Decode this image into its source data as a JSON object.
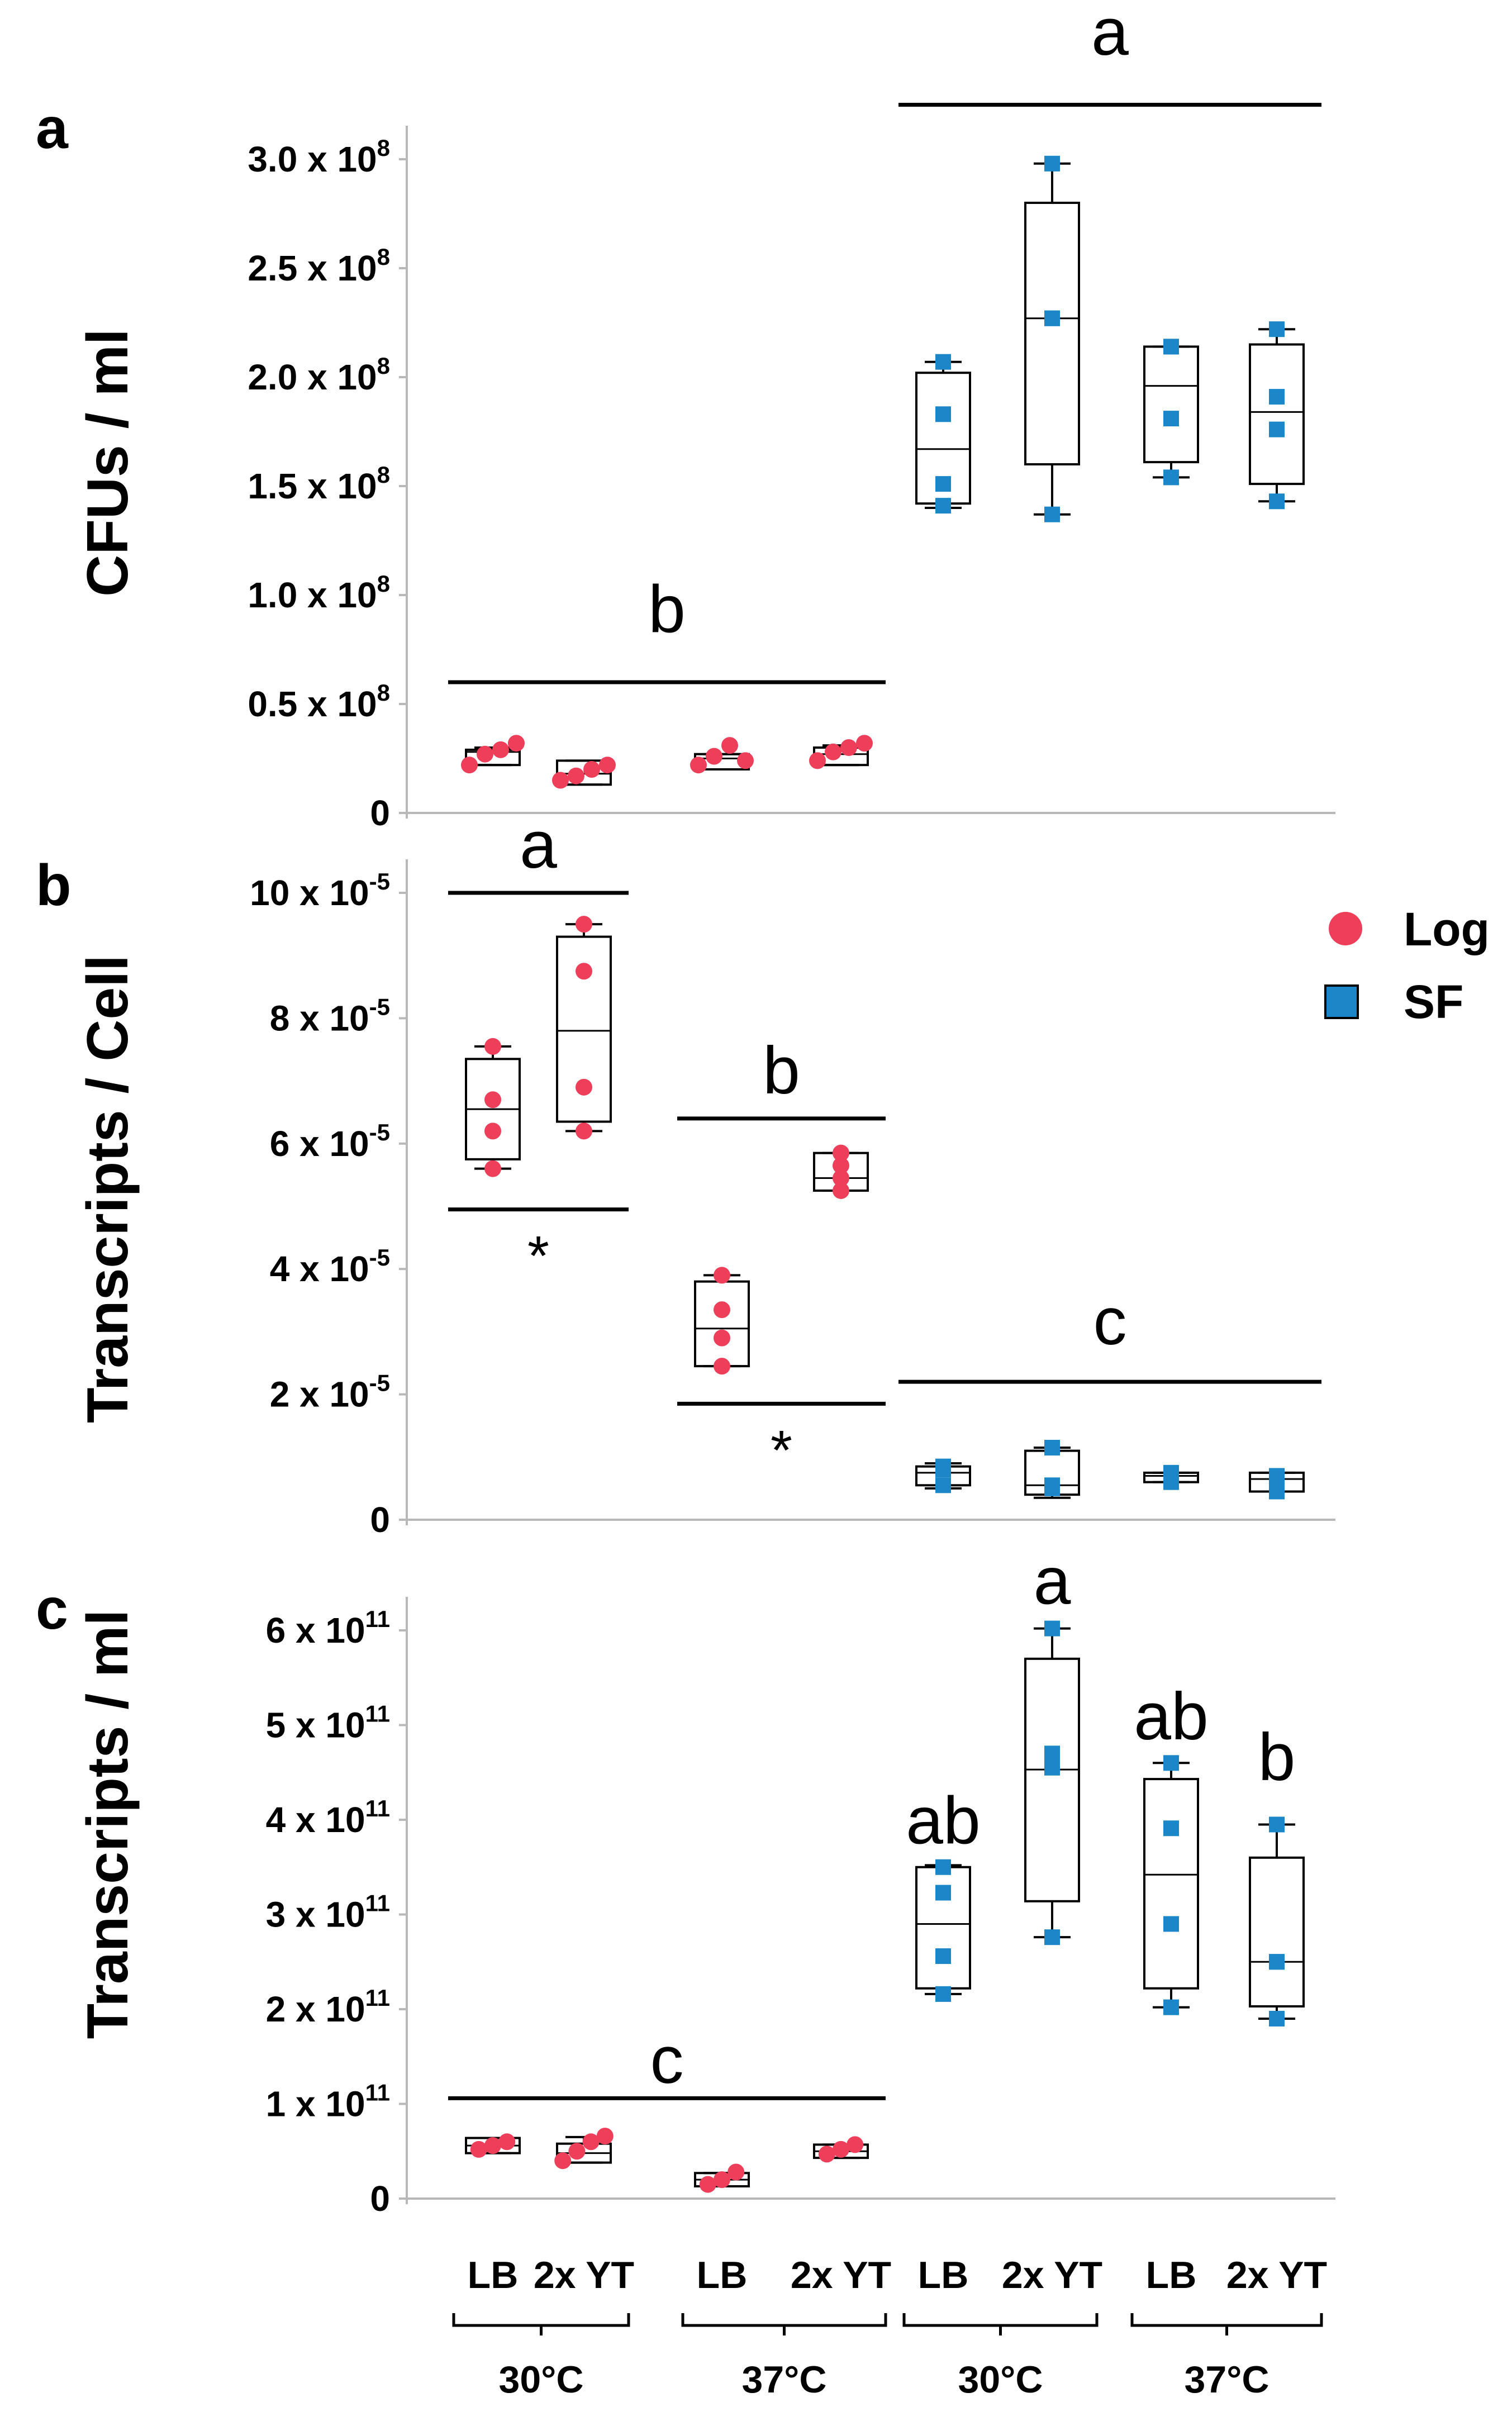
{
  "figure": {
    "categories": [
      "LB",
      "2x YT",
      "LB",
      "2x YT",
      "LB",
      "2x YT",
      "LB",
      "2x YT"
    ],
    "groups": [
      "30°C",
      "37°C",
      "30°C",
      "37°C"
    ],
    "legend": [
      {
        "name": "Log",
        "color": "#ee3f5a",
        "marker": "circle"
      },
      {
        "name": "SF",
        "color": "#1b86c8",
        "marker": "square"
      }
    ],
    "colors": {
      "log": "#ee3f5a",
      "sf": "#1b86c8",
      "axis": "#b8b8b8"
    }
  },
  "chart_data": [
    {
      "panel": "a",
      "type": "box",
      "ylabel": "CFUs / ml",
      "ylim": [
        0,
        300000000
      ],
      "yticks": [
        {
          "value": 0,
          "mant": "0",
          "exp": ""
        },
        {
          "value": 50000000,
          "mant": "0.5 x 10",
          "exp": "8"
        },
        {
          "value": 100000000,
          "mant": "1.0 x 10",
          "exp": "8"
        },
        {
          "value": 150000000,
          "mant": "1.5 x 10",
          "exp": "8"
        },
        {
          "value": 200000000,
          "mant": "2.0 x 10",
          "exp": "8"
        },
        {
          "value": 250000000,
          "mant": "2.5 x 10",
          "exp": "8"
        },
        {
          "value": 300000000,
          "mant": "3.0 x 10",
          "exp": "8"
        }
      ],
      "boxes": [
        {
          "series": "Log",
          "min": 22000000,
          "q1": 22000000,
          "median": 28000000,
          "q3": 29000000,
          "max": 30000000,
          "points": [
            22000000,
            27000000,
            29000000,
            32000000
          ]
        },
        {
          "series": "Log",
          "min": 13000000,
          "q1": 13000000,
          "median": 18000000,
          "q3": 24000000,
          "max": 24000000,
          "points": [
            15000000,
            17000000,
            20000000,
            22000000
          ]
        },
        {
          "series": "Log",
          "min": 20000000,
          "q1": 20000000,
          "median": 25000000,
          "q3": 27000000,
          "max": 27000000,
          "points": [
            22000000,
            26000000,
            31000000,
            24000000
          ]
        },
        {
          "series": "Log",
          "min": 22000000,
          "q1": 22000000,
          "median": 27000000,
          "q3": 30000000,
          "max": 31000000,
          "points": [
            24000000,
            28000000,
            30000000,
            32000000
          ]
        },
        {
          "series": "SF",
          "min": 140000000,
          "q1": 142000000,
          "median": 167000000,
          "q3": 202000000,
          "max": 207000000,
          "points": [
            141000000,
            151000000,
            183000000,
            207000000
          ]
        },
        {
          "series": "SF",
          "min": 137000000,
          "q1": 160000000,
          "median": 227000000,
          "q3": 280000000,
          "max": 298000000,
          "points": [
            137000000,
            227000000,
            227000000,
            298000000
          ]
        },
        {
          "series": "SF",
          "min": 154000000,
          "q1": 161000000,
          "median": 196000000,
          "q3": 214000000,
          "max": 214000000,
          "points": [
            154000000,
            181000000,
            214000000,
            214000000
          ]
        },
        {
          "series": "SF",
          "min": 143000000,
          "q1": 151000000,
          "median": 184000000,
          "q3": 215000000,
          "max": 222000000,
          "points": [
            143000000,
            176000000,
            191000000,
            222000000
          ]
        }
      ],
      "brackets": [
        {
          "label": "a",
          "from": 4,
          "to": 7,
          "y": 325000000,
          "text_y": 348000000
        },
        {
          "label": "b",
          "from": 0,
          "to": 3,
          "y": 60000000,
          "text_y": 83000000
        }
      ]
    },
    {
      "panel": "b",
      "type": "box",
      "ylabel": "Transcripts / Cell",
      "ylim": [
        0,
        0.0001
      ],
      "yticks": [
        {
          "value": 0,
          "mant": "0",
          "exp": ""
        },
        {
          "value": 2e-05,
          "mant": "2 x 10",
          "exp": "-5"
        },
        {
          "value": 4e-05,
          "mant": "4 x 10",
          "exp": "-5"
        },
        {
          "value": 6e-05,
          "mant": "6 x 10",
          "exp": "-5"
        },
        {
          "value": 8e-05,
          "mant": "8 x 10",
          "exp": "-5"
        },
        {
          "value": 0.0001,
          "mant": "10 x 10",
          "exp": "-5"
        }
      ],
      "boxes": [
        {
          "series": "Log",
          "min": 5.6e-05,
          "q1": 5.75e-05,
          "median": 6.55e-05,
          "q3": 7.35e-05,
          "max": 7.55e-05,
          "points": [
            5.6e-05,
            6.2e-05,
            6.7e-05,
            7.55e-05
          ]
        },
        {
          "series": "Log",
          "min": 6.2e-05,
          "q1": 6.35e-05,
          "median": 7.8e-05,
          "q3": 9.3e-05,
          "max": 9.5e-05,
          "points": [
            6.2e-05,
            6.9e-05,
            8.75e-05,
            9.5e-05
          ]
        },
        {
          "series": "Log",
          "min": 2.45e-05,
          "q1": 2.45e-05,
          "median": 3.05e-05,
          "q3": 3.8e-05,
          "max": 3.9e-05,
          "points": [
            2.45e-05,
            2.9e-05,
            3.35e-05,
            3.9e-05
          ]
        },
        {
          "series": "Log",
          "min": 5.25e-05,
          "q1": 5.25e-05,
          "median": 5.45e-05,
          "q3": 5.85e-05,
          "max": 5.85e-05,
          "points": [
            5.25e-05,
            5.45e-05,
            5.65e-05,
            5.85e-05
          ]
        },
        {
          "series": "SF",
          "min": 5e-06,
          "q1": 5.5e-06,
          "median": 7.5e-06,
          "q3": 8.5e-06,
          "max": 9e-06,
          "points": [
            5.5e-06,
            8.5e-06,
            8e-06
          ]
        },
        {
          "series": "SF",
          "min": 3.5e-06,
          "q1": 4e-06,
          "median": 5.5e-06,
          "q3": 1.1e-05,
          "max": 1.15e-05,
          "points": [
            5e-06,
            5.5e-06,
            1.15e-05
          ]
        },
        {
          "series": "SF",
          "min": 6e-06,
          "q1": 6e-06,
          "median": 7e-06,
          "q3": 7.5e-06,
          "max": 7.5e-06,
          "points": [
            6e-06,
            7e-06,
            7.5e-06
          ]
        },
        {
          "series": "SF",
          "min": 4.5e-06,
          "q1": 4.5e-06,
          "median": 6.5e-06,
          "q3": 7.5e-06,
          "max": 7.5e-06,
          "points": [
            4.5e-06,
            5.5e-06,
            7e-06
          ]
        }
      ],
      "brackets": [
        {
          "label": "a",
          "from": 0,
          "to": 1,
          "y": 0.0001,
          "text_y": 0.000104
        },
        {
          "label": "*",
          "from": 0,
          "to": 1,
          "y": 4.95e-05,
          "text_y": 4.35e-05
        },
        {
          "label": "b",
          "from": 2,
          "to": 3,
          "y": 6.4e-05,
          "text_y": 6.8e-05
        },
        {
          "label": "*",
          "from": 2,
          "to": 3,
          "y": 1.85e-05,
          "text_y": 1.25e-05
        },
        {
          "label": "c",
          "from": 4,
          "to": 7,
          "y": 2.2e-05,
          "text_y": 2.8e-05
        }
      ]
    },
    {
      "panel": "c",
      "type": "box",
      "ylabel": "Transcripts / ml",
      "ylim": [
        0,
        600000000000
      ],
      "yticks": [
        {
          "value": 0,
          "mant": "0",
          "exp": ""
        },
        {
          "value": 100000000000,
          "mant": "1 x 10",
          "exp": "11"
        },
        {
          "value": 200000000000,
          "mant": "2 x 10",
          "exp": "11"
        },
        {
          "value": 300000000000,
          "mant": "3 x 10",
          "exp": "11"
        },
        {
          "value": 400000000000,
          "mant": "4 x 10",
          "exp": "11"
        },
        {
          "value": 500000000000,
          "mant": "5 x 10",
          "exp": "11"
        },
        {
          "value": 600000000000,
          "mant": "6 x 10",
          "exp": "11"
        }
      ],
      "boxes": [
        {
          "series": "Log",
          "min": 48000000000,
          "q1": 48000000000,
          "median": 56000000000,
          "q3": 64000000000,
          "max": 64000000000,
          "points": [
            52000000000,
            56000000000,
            60000000000
          ]
        },
        {
          "series": "Log",
          "min": 38000000000,
          "q1": 38000000000,
          "median": 48000000000,
          "q3": 58000000000,
          "max": 65000000000,
          "points": [
            40000000000,
            50000000000,
            60000000000,
            66000000000
          ]
        },
        {
          "series": "Log",
          "min": 13000000000,
          "q1": 13000000000,
          "median": 20000000000,
          "q3": 27000000000,
          "max": 27000000000,
          "points": [
            15000000000,
            20000000000,
            28000000000
          ]
        },
        {
          "series": "Log",
          "min": 43000000000,
          "q1": 43000000000,
          "median": 50000000000,
          "q3": 57000000000,
          "max": 57000000000,
          "points": [
            47000000000,
            52000000000,
            57000000000
          ]
        },
        {
          "series": "SF",
          "min": 216000000000,
          "q1": 222000000000,
          "median": 290000000000,
          "q3": 350000000000,
          "max": 352000000000,
          "points": [
            216000000000,
            256000000000,
            323000000000,
            350000000000
          ]
        },
        {
          "series": "SF",
          "min": 276000000000,
          "q1": 314000000000,
          "median": 453000000000,
          "q3": 570000000000,
          "max": 602000000000,
          "points": [
            276000000000,
            455000000000,
            470000000000,
            602000000000
          ]
        },
        {
          "series": "SF",
          "min": 202000000000,
          "q1": 222000000000,
          "median": 342000000000,
          "q3": 443000000000,
          "max": 460000000000,
          "points": [
            202000000000,
            290000000000,
            391000000000,
            460000000000
          ]
        },
        {
          "series": "SF",
          "min": 190000000000,
          "q1": 203000000000,
          "median": 250000000000,
          "q3": 360000000000,
          "max": 395000000000,
          "points": [
            190000000000,
            250000000000,
            250000000000,
            395000000000
          ]
        }
      ],
      "brackets": [
        {
          "label": "c",
          "from": 0,
          "to": 3,
          "y": 106000000000,
          "text_y": 122000000000
        }
      ],
      "labels": [
        {
          "label": "a",
          "index": 5,
          "text_y": 628000000000
        },
        {
          "label": "ab",
          "index": 4,
          "text_y": 375000000000
        },
        {
          "label": "ab",
          "index": 6,
          "text_y": 485000000000
        },
        {
          "label": "b",
          "index": 7,
          "text_y": 442000000000
        }
      ]
    }
  ]
}
